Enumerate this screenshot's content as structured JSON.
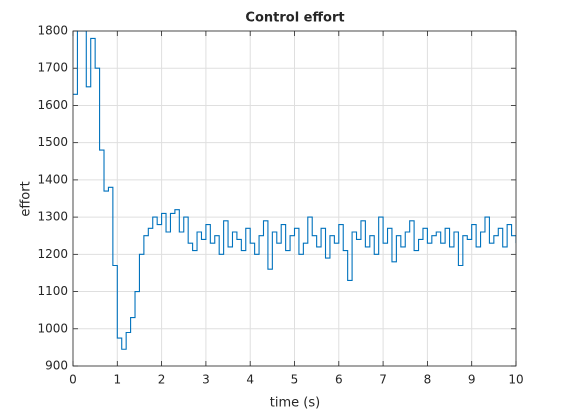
{
  "chart_data": {
    "type": "stairs",
    "title": "Control effort",
    "x_label": "time (s)",
    "y_label": "effort",
    "x": [
      0,
      0.1,
      0.2,
      0.3,
      0.4,
      0.5,
      0.6,
      0.7,
      0.8,
      0.9,
      1,
      1.1,
      1.2,
      1.3,
      1.4,
      1.5,
      1.6,
      1.7,
      1.8,
      1.9,
      2,
      2.1,
      2.2,
      2.3,
      2.4,
      2.5,
      2.6,
      2.7,
      2.8,
      2.9,
      3,
      3.1,
      3.2,
      3.3,
      3.4,
      3.5,
      3.6,
      3.7,
      3.8,
      3.9,
      4,
      4.1,
      4.2,
      4.3,
      4.4,
      4.5,
      4.6,
      4.7,
      4.8,
      4.9,
      5,
      5.1,
      5.2,
      5.3,
      5.4,
      5.5,
      5.6,
      5.7,
      5.8,
      5.9,
      6,
      6.1,
      6.2,
      6.3,
      6.4,
      6.5,
      6.6,
      6.7,
      6.8,
      6.9,
      7,
      7.1,
      7.2,
      7.3,
      7.4,
      7.5,
      7.6,
      7.7,
      7.8,
      7.9,
      8,
      8.1,
      8.2,
      8.3,
      8.4,
      8.5,
      8.6,
      8.7,
      8.8,
      8.9,
      9,
      9.1,
      9.2,
      9.3,
      9.4,
      9.5,
      9.6,
      9.7,
      9.8,
      9.9,
      10
    ],
    "series": [
      {
        "color": "#0072bd",
        "values": [
          1630,
          1800,
          1800,
          1650,
          1780,
          1700,
          1480,
          1370,
          1380,
          1170,
          975,
          945,
          990,
          1030,
          1100,
          1200,
          1250,
          1270,
          1300,
          1280,
          1310,
          1260,
          1310,
          1320,
          1260,
          1300,
          1230,
          1210,
          1260,
          1240,
          1280,
          1230,
          1250,
          1200,
          1290,
          1220,
          1260,
          1240,
          1210,
          1270,
          1230,
          1200,
          1250,
          1290,
          1160,
          1260,
          1230,
          1280,
          1210,
          1250,
          1270,
          1200,
          1230,
          1300,
          1250,
          1220,
          1270,
          1190,
          1250,
          1230,
          1280,
          1210,
          1130,
          1260,
          1240,
          1290,
          1220,
          1250,
          1200,
          1300,
          1230,
          1270,
          1180,
          1250,
          1220,
          1260,
          1290,
          1210,
          1240,
          1270,
          1230,
          1250,
          1260,
          1230,
          1270,
          1220,
          1260,
          1170,
          1250,
          1240,
          1280,
          1220,
          1260,
          1300,
          1230,
          1250,
          1270,
          1220,
          1280,
          1250,
          1230
        ]
      }
    ],
    "xlim": [
      0,
      10
    ],
    "xticks": [
      0,
      1,
      2,
      3,
      4,
      5,
      6,
      7,
      8,
      9,
      10
    ],
    "ylim": [
      900,
      1800
    ],
    "yticks": [
      900,
      1000,
      1100,
      1200,
      1300,
      1400,
      1500,
      1600,
      1700,
      1800
    ],
    "grid": true
  }
}
